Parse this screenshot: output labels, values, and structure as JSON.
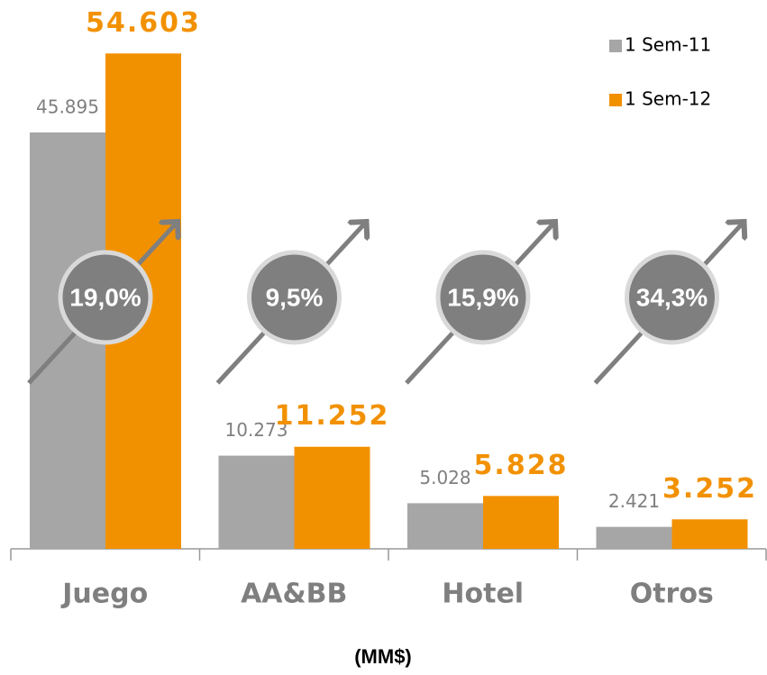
{
  "chart_data": {
    "type": "bar",
    "categories": [
      "Juego",
      "AA&BB",
      "Hotel",
      "Otros"
    ],
    "series": [
      {
        "name": "1 Sem-11",
        "color": "#a6a6a6",
        "values": [
          45895,
          10273,
          5028,
          2421
        ],
        "value_labels": [
          "45.895",
          "10.273",
          "5.028",
          "2.421"
        ]
      },
      {
        "name": "1 Sem-12",
        "color": "#f29100",
        "values": [
          54603,
          11252,
          5828,
          3252
        ],
        "value_labels": [
          "54.603",
          "11.252",
          "5.828",
          "3.252"
        ]
      }
    ],
    "annotations": [
      "19,0%",
      "9,5%",
      "15,9%",
      "34,3%"
    ],
    "x_label": "(MM$)",
    "ylim": [
      0,
      60000
    ],
    "legend": "upper right"
  }
}
